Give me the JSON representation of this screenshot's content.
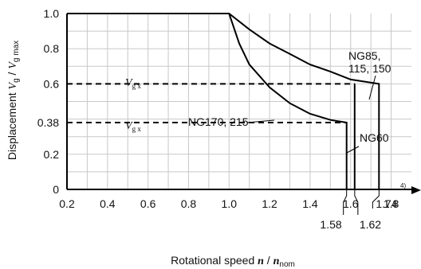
{
  "chart_data": {
    "type": "line",
    "xlabel": {
      "prefix": "Rotational speed ",
      "var": "n",
      "sep": " / ",
      "var2": "n",
      "sub2": "nom"
    },
    "ylabel": {
      "prefix": "Displacement ",
      "var": "V",
      "sub": "g",
      "sep": " / ",
      "var2": "V",
      "sub2": "g max"
    },
    "xlim": [
      0.2,
      1.9
    ],
    "ylim": [
      0,
      1.0
    ],
    "x_ticks": [
      {
        "v": 0.2,
        "label": "0.2"
      },
      {
        "v": 0.4,
        "label": "0.4"
      },
      {
        "v": 0.6,
        "label": "0.6"
      },
      {
        "v": 0.8,
        "label": "0.8"
      },
      {
        "v": 1.0,
        "label": "1.0"
      },
      {
        "v": 1.2,
        "label": "1.2"
      },
      {
        "v": 1.4,
        "label": "1.4"
      },
      {
        "v": 1.6,
        "label": "1.6"
      },
      {
        "v": 1.8,
        "label": "1.8"
      }
    ],
    "y_ticks": [
      {
        "v": 0,
        "label": "0"
      },
      {
        "v": 0.2,
        "label": "0.2"
      },
      {
        "v": 0.38,
        "label": "0.38"
      },
      {
        "v": 0.6,
        "label": "0.6"
      },
      {
        "v": 0.8,
        "label": "0.8"
      },
      {
        "v": 1.0,
        "label": "1.0"
      }
    ],
    "grid": true,
    "series": [
      {
        "name": "NG85, 115, 150",
        "x": [
          0.2,
          1.0,
          1.1,
          1.2,
          1.3,
          1.4,
          1.5,
          1.6,
          1.74,
          1.74
        ],
        "y": [
          1.0,
          1.0,
          0.91,
          0.83,
          0.77,
          0.71,
          0.67,
          0.625,
          0.6,
          0
        ]
      },
      {
        "name": "NG170, 215",
        "x": [
          0.2,
          1.0,
          1.05,
          1.1,
          1.2,
          1.3,
          1.4,
          1.5,
          1.58,
          1.58
        ],
        "y": [
          1.0,
          1.0,
          0.83,
          0.71,
          0.58,
          0.49,
          0.43,
          0.395,
          0.38,
          0
        ]
      },
      {
        "name": "NG60",
        "x": [
          1.62,
          1.62
        ],
        "y": [
          0.6,
          0
        ]
      }
    ],
    "reference_lines": [
      {
        "label_var": "V",
        "label_sub": "g x",
        "y": 0.6,
        "x_end": 1.62
      },
      {
        "label_var": "V",
        "label_sub": "g x",
        "y": 0.38,
        "x_end": 1.58
      }
    ],
    "annotations": [
      {
        "id": "ng170",
        "text": "NG170, 215"
      },
      {
        "id": "ng85a",
        "text": "NG85,"
      },
      {
        "id": "ng85b",
        "text": "115, 150"
      },
      {
        "id": "ng60",
        "text": "NG60"
      },
      {
        "id": "note",
        "text": "4)"
      }
    ],
    "callout_ticks": [
      {
        "v": 1.58,
        "label": "1.58"
      },
      {
        "v": 1.62,
        "label": "1.62"
      },
      {
        "v": 1.74,
        "label": "1.74"
      }
    ]
  }
}
